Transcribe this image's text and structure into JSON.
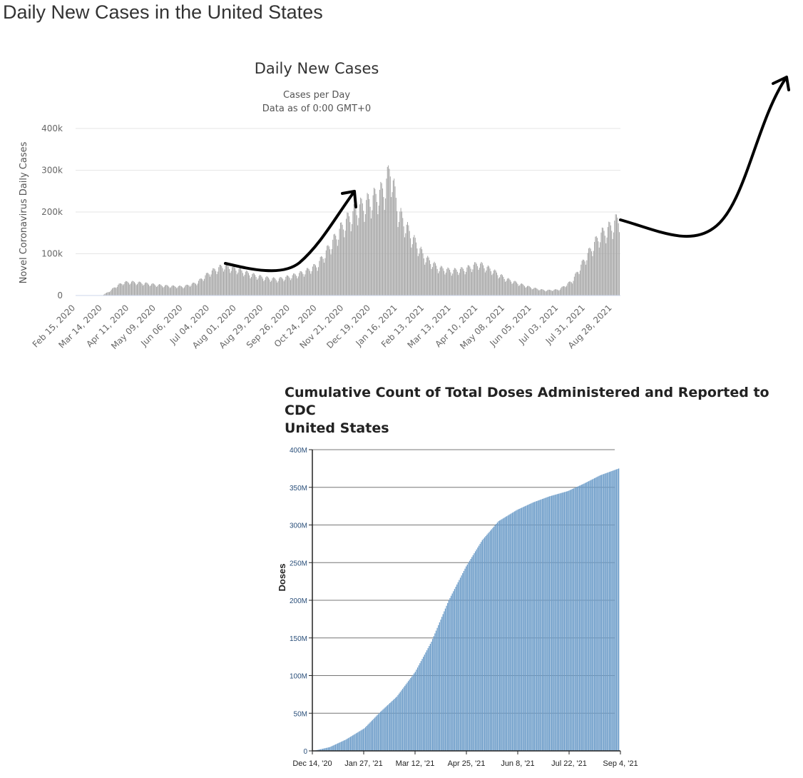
{
  "page": {
    "title": "Daily New Cases in the United States"
  },
  "chart_data": [
    {
      "type": "bar",
      "title": "Daily New Cases",
      "subtitle": [
        "Cases per Day",
        "Data as of 0:00 GMT+0"
      ],
      "xlabel": "",
      "ylabel": "Novel Coronavirus Daily Cases",
      "ylim": [
        0,
        400000
      ],
      "yticks": [
        0,
        100000,
        200000,
        300000,
        400000
      ],
      "ytick_labels": [
        "0",
        "100k",
        "200k",
        "300k",
        "400k"
      ],
      "xtick_labels": [
        "Feb 15, 2020",
        "Mar 14, 2020",
        "Apr 11, 2020",
        "May 09, 2020",
        "Jun 06, 2020",
        "Jul 04, 2020",
        "Aug 01, 2020",
        "Aug 29, 2020",
        "Sep 26, 2020",
        "Oct 24, 2020",
        "Nov 21, 2020",
        "Dec 19, 2020",
        "Jan 16, 2021",
        "Feb 13, 2021",
        "Mar 13, 2021",
        "Apr 10, 2021",
        "May 08, 2021",
        "Jun 05, 2021",
        "Jul 03, 2021",
        "Jul 31, 2021",
        "Aug 28, 2021"
      ],
      "x_start": "Feb 15, 2020",
      "x_end": "Sep 04, 2021",
      "grid": true,
      "legend": "none",
      "bar_color": "#a5a5a5",
      "x": [
        "2020-02-15",
        "2020-02-29",
        "2020-03-14",
        "2020-03-21",
        "2020-03-28",
        "2020-04-04",
        "2020-04-11",
        "2020-04-25",
        "2020-05-09",
        "2020-05-23",
        "2020-06-06",
        "2020-06-20",
        "2020-07-04",
        "2020-07-18",
        "2020-08-01",
        "2020-08-15",
        "2020-08-29",
        "2020-09-12",
        "2020-09-26",
        "2020-10-10",
        "2020-10-24",
        "2020-11-07",
        "2020-11-21",
        "2020-12-05",
        "2020-12-19",
        "2021-01-02",
        "2021-01-08",
        "2021-01-16",
        "2021-01-30",
        "2021-02-13",
        "2021-02-27",
        "2021-03-13",
        "2021-03-27",
        "2021-04-10",
        "2021-04-24",
        "2021-05-08",
        "2021-05-22",
        "2021-06-05",
        "2021-06-19",
        "2021-07-03",
        "2021-07-17",
        "2021-07-31",
        "2021-08-14",
        "2021-08-28",
        "2021-09-04"
      ],
      "y": [
        0,
        0,
        1000,
        10000,
        22000,
        30000,
        32000,
        29000,
        25000,
        22000,
        21000,
        30000,
        55000,
        70000,
        62000,
        50000,
        42000,
        38000,
        45000,
        55000,
        72000,
        120000,
        170000,
        205000,
        225000,
        250000,
        300000,
        200000,
        140000,
        90000,
        65000,
        58000,
        62000,
        75000,
        60000,
        40000,
        28000,
        18000,
        12000,
        14000,
        35000,
        90000,
        140000,
        165000,
        185000
      ]
    },
    {
      "type": "bar",
      "title": [
        "Cumulative Count of Total Doses Administered and Reported to CDC",
        "United States"
      ],
      "xlabel": "",
      "ylabel": "Doses",
      "ylim": [
        0,
        400000000
      ],
      "yticks": [
        0,
        50000000,
        100000000,
        150000000,
        200000000,
        250000000,
        300000000,
        350000000,
        400000000
      ],
      "ytick_labels": [
        "0",
        "50M",
        "100M",
        "150M",
        "200M",
        "250M",
        "300M",
        "350M",
        "400M"
      ],
      "xtick_labels": [
        "Dec 14, '20",
        "Jan 27, '21",
        "Mar 12, '21",
        "Apr 25, '21",
        "Jun 8, '21",
        "Jul 22, '21",
        "Sep 4, '21"
      ],
      "x_start": "Dec 14, '20",
      "x_end": "Sep 4, '21",
      "grid": true,
      "legend": "none",
      "bar_color": "#6d9dc9",
      "x": [
        "2020-12-14",
        "2020-12-28",
        "2021-01-11",
        "2021-01-27",
        "2021-02-10",
        "2021-02-24",
        "2021-03-12",
        "2021-03-26",
        "2021-04-10",
        "2021-04-25",
        "2021-05-09",
        "2021-05-23",
        "2021-06-08",
        "2021-06-22",
        "2021-07-06",
        "2021-07-22",
        "2021-08-05",
        "2021-08-19",
        "2021-09-04"
      ],
      "y": [
        0,
        5000000,
        15000000,
        30000000,
        52000000,
        72000000,
        105000000,
        145000000,
        200000000,
        245000000,
        280000000,
        305000000,
        320000000,
        330000000,
        338000000,
        345000000,
        355000000,
        366000000,
        375000000
      ]
    }
  ]
}
